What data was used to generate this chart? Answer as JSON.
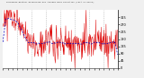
{
  "title": "Milwaukee Weather Normalized and Average Wind Direction (Last 24 Hours)",
  "bg_color": "#f0f0f0",
  "plot_bg": "#ffffff",
  "line_color": "#dd0000",
  "avg_color": "#0000bb",
  "grid_color": "#aaaaaa",
  "ymin": 0,
  "ymax": 360,
  "yticks": [
    0,
    45,
    90,
    135,
    180,
    225,
    270,
    315
  ],
  "n_points": 288,
  "n_vgridlines": 8
}
